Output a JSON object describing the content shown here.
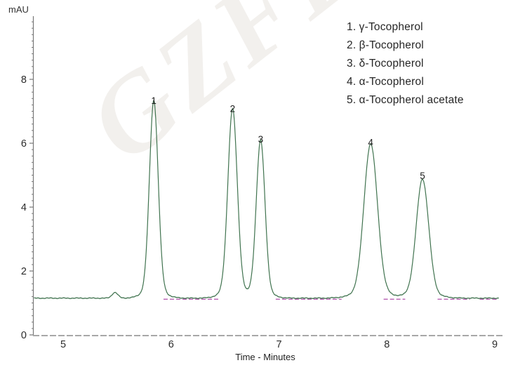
{
  "watermark": {
    "text": "GZFL"
  },
  "chart_data": {
    "type": "line",
    "title": "",
    "xlabel": "Time - Minutes",
    "ylabel": "mAU",
    "x_ticks": [
      5,
      6,
      7,
      8,
      9
    ],
    "y_ticks": [
      0,
      2,
      4,
      6,
      8
    ],
    "y_minor_step": 0.2,
    "xlim": [
      4.73,
      9.04
    ],
    "ylim": [
      0,
      10
    ],
    "grid": "off",
    "legend_position": "upper-right",
    "baseline_mau": 1.15,
    "noise_mau": 0.02,
    "trace_color": "#40734f",
    "integration_mark_color": "#b55cb0",
    "axis_color": "#777777",
    "dashed_axis_color": "#a8a8a8",
    "text_color": "#2b2b2b",
    "peaks": [
      {
        "label": "1",
        "compound": "γ-Tocopherol",
        "time_min": 5.84,
        "apex_mau": 7.05,
        "sigma_min": 0.04
      },
      {
        "label": "2",
        "compound": "β-Tocopherol",
        "time_min": 6.57,
        "apex_mau": 6.8,
        "sigma_min": 0.043
      },
      {
        "label": "3",
        "compound": "δ-Tocopherol",
        "time_min": 6.83,
        "apex_mau": 5.85,
        "sigma_min": 0.04
      },
      {
        "label": "4",
        "compound": "α-Tocopherol",
        "time_min": 7.85,
        "apex_mau": 5.75,
        "sigma_min": 0.062
      },
      {
        "label": "5",
        "compound": "α-Tocopherol acetate",
        "time_min": 8.33,
        "apex_mau": 4.7,
        "sigma_min": 0.057
      }
    ],
    "minor_bump": {
      "time_min": 5.48,
      "apex_mau": 1.33,
      "sigma_min": 0.027
    },
    "integration_segments": [
      [
        5.93,
        6.44
      ],
      [
        6.97,
        7.58
      ],
      [
        7.97,
        8.17
      ],
      [
        8.47,
        8.77
      ],
      [
        8.86,
        9.02
      ]
    ],
    "legend_entries": [
      {
        "number": "1.",
        "name": "γ-Tocopherol"
      },
      {
        "number": "2.",
        "name": "β-Tocopherol"
      },
      {
        "number": "3.",
        "name": "δ-Tocopherol"
      },
      {
        "number": "4.",
        "name": "α-Tocopherol"
      },
      {
        "number": "5.",
        "name": "α-Tocopherol acetate"
      }
    ]
  }
}
